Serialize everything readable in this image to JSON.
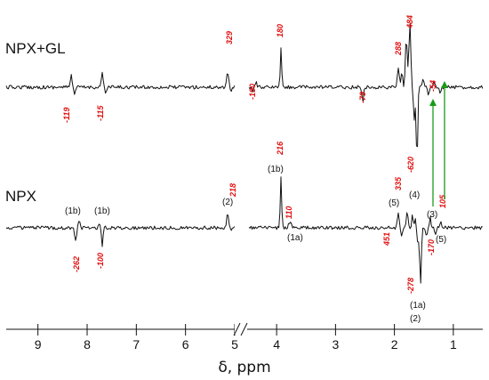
{
  "chart_data": {
    "type": "line",
    "title": "",
    "xlabel": "δ, ppm",
    "ylabel": "",
    "x_reversed": true,
    "xlim": [
      9.5,
      0.5
    ],
    "axis_break": [
      4.5,
      5.0
    ],
    "xticks": [
      "9",
      "8",
      "7",
      "6",
      "5",
      "4",
      "3",
      "2",
      "1"
    ],
    "grid": false,
    "series": [
      {
        "name": "NPX+GL",
        "peaks": [
          {
            "x": 7.92,
            "sign": -1,
            "label": "-119"
          },
          {
            "x": 7.42,
            "sign": -1,
            "label": "-115"
          },
          {
            "x": 5.12,
            "sign": 1,
            "label": "329"
          },
          {
            "x": 4.6,
            "sign": -1,
            "label": "-190"
          },
          {
            "x": 4.03,
            "sign": 1,
            "label": "180"
          },
          {
            "x": 2.55,
            "sign": -1,
            "label": "-79"
          },
          {
            "x": 1.88,
            "sign": 1,
            "label": "288"
          },
          {
            "x": 1.73,
            "sign": 1,
            "label": "484"
          },
          {
            "x": 1.6,
            "sign": -1,
            "label": "-620"
          },
          {
            "x": 1.42,
            "sign": -1,
            "label": "-54"
          }
        ]
      },
      {
        "name": "NPX",
        "peaks": [
          {
            "x": 7.88,
            "sign": -1,
            "label": "-262",
            "assignment": "(1b)"
          },
          {
            "x": 7.42,
            "sign": -1,
            "label": "-100",
            "assignment": "(1b)"
          },
          {
            "x": 5.12,
            "sign": 1,
            "label": "218",
            "assignment": "(2)"
          },
          {
            "x": 4.05,
            "sign": 1,
            "label": "216",
            "assignment": "(1b)"
          },
          {
            "x": 3.82,
            "sign": 1,
            "label": "110",
            "assignment": "(1a)"
          },
          {
            "x": 1.85,
            "sign": 1,
            "label": "335",
            "assignment": "(5)"
          },
          {
            "x": 1.65,
            "sign": 1,
            "label": "451",
            "assignment": "(4)"
          },
          {
            "x": 1.6,
            "sign": -1,
            "label": "-278",
            "assignment": "(1a)"
          },
          {
            "x": 1.37,
            "sign": -1,
            "label": "-170",
            "assignment": "(3)"
          },
          {
            "x": 1.22,
            "sign": 1,
            "label": "105",
            "assignment": "(5)"
          }
        ],
        "extra_labels": [
          "(2)"
        ]
      }
    ],
    "annotations": [
      {
        "type": "arrow",
        "color": "#1a9a1a",
        "x": 1.42,
        "from_series": "NPX",
        "to_series": "NPX+GL"
      },
      {
        "type": "arrow",
        "color": "#1a9a1a",
        "x": 1.22,
        "from_series": "NPX",
        "to_series": "NPX+GL"
      }
    ],
    "colors": {
      "trace": "#111111",
      "intensity_label": "#e01010",
      "arrow": "#1a9a1a"
    }
  }
}
